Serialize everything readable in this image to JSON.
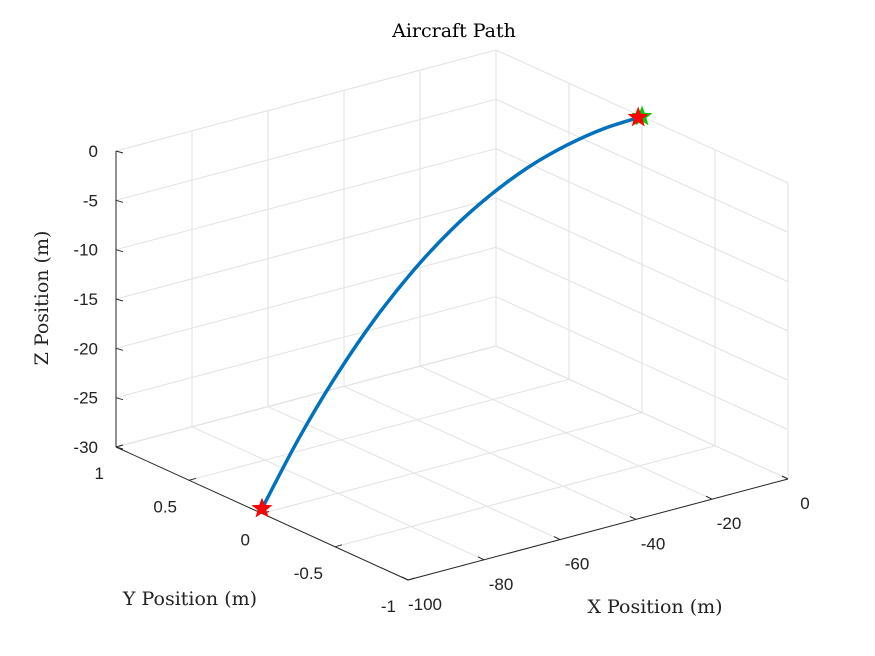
{
  "chart_data": {
    "type": "line",
    "projection": "3d",
    "title": "Aircraft Path",
    "xlabel": "X Position (m)",
    "ylabel": "Y Position (m)",
    "zlabel": "Z Position (m)",
    "xlim": [
      -100,
      0
    ],
    "ylim": [
      -1,
      1
    ],
    "zlim": [
      -30,
      0
    ],
    "x_ticks": [
      "-100",
      "-80",
      "-60",
      "-40",
      "-20",
      "0"
    ],
    "y_ticks": [
      "-1",
      "-0.5",
      "0",
      "0.5",
      "1"
    ],
    "z_ticks": [
      "-30",
      "-25",
      "-20",
      "-15",
      "-10",
      "-5",
      "0"
    ],
    "grid": true,
    "series": [
      {
        "color": "#0072BD",
        "x": [
          -100,
          -90,
          -80,
          -70,
          -60,
          -50,
          -40,
          -30,
          -20,
          -10,
          0
        ],
        "y": [
          0,
          0,
          0,
          0,
          0,
          0,
          0,
          0,
          0,
          0,
          0
        ],
        "z": [
          -29.5,
          -23.2,
          -17.8,
          -13.2,
          -9.4,
          -6.3,
          -3.9,
          -2.1,
          -0.9,
          -0.2,
          0
        ]
      }
    ],
    "markers": [
      {
        "shape": "star",
        "color": "#FF0000",
        "x": -100,
        "y": 0,
        "z": -29.5
      },
      {
        "shape": "star",
        "color": "#00CC00",
        "x": 0,
        "y": 0,
        "z": 0
      },
      {
        "shape": "star",
        "color": "#FF0000",
        "x": -1,
        "y": 0,
        "z": 0
      }
    ]
  }
}
